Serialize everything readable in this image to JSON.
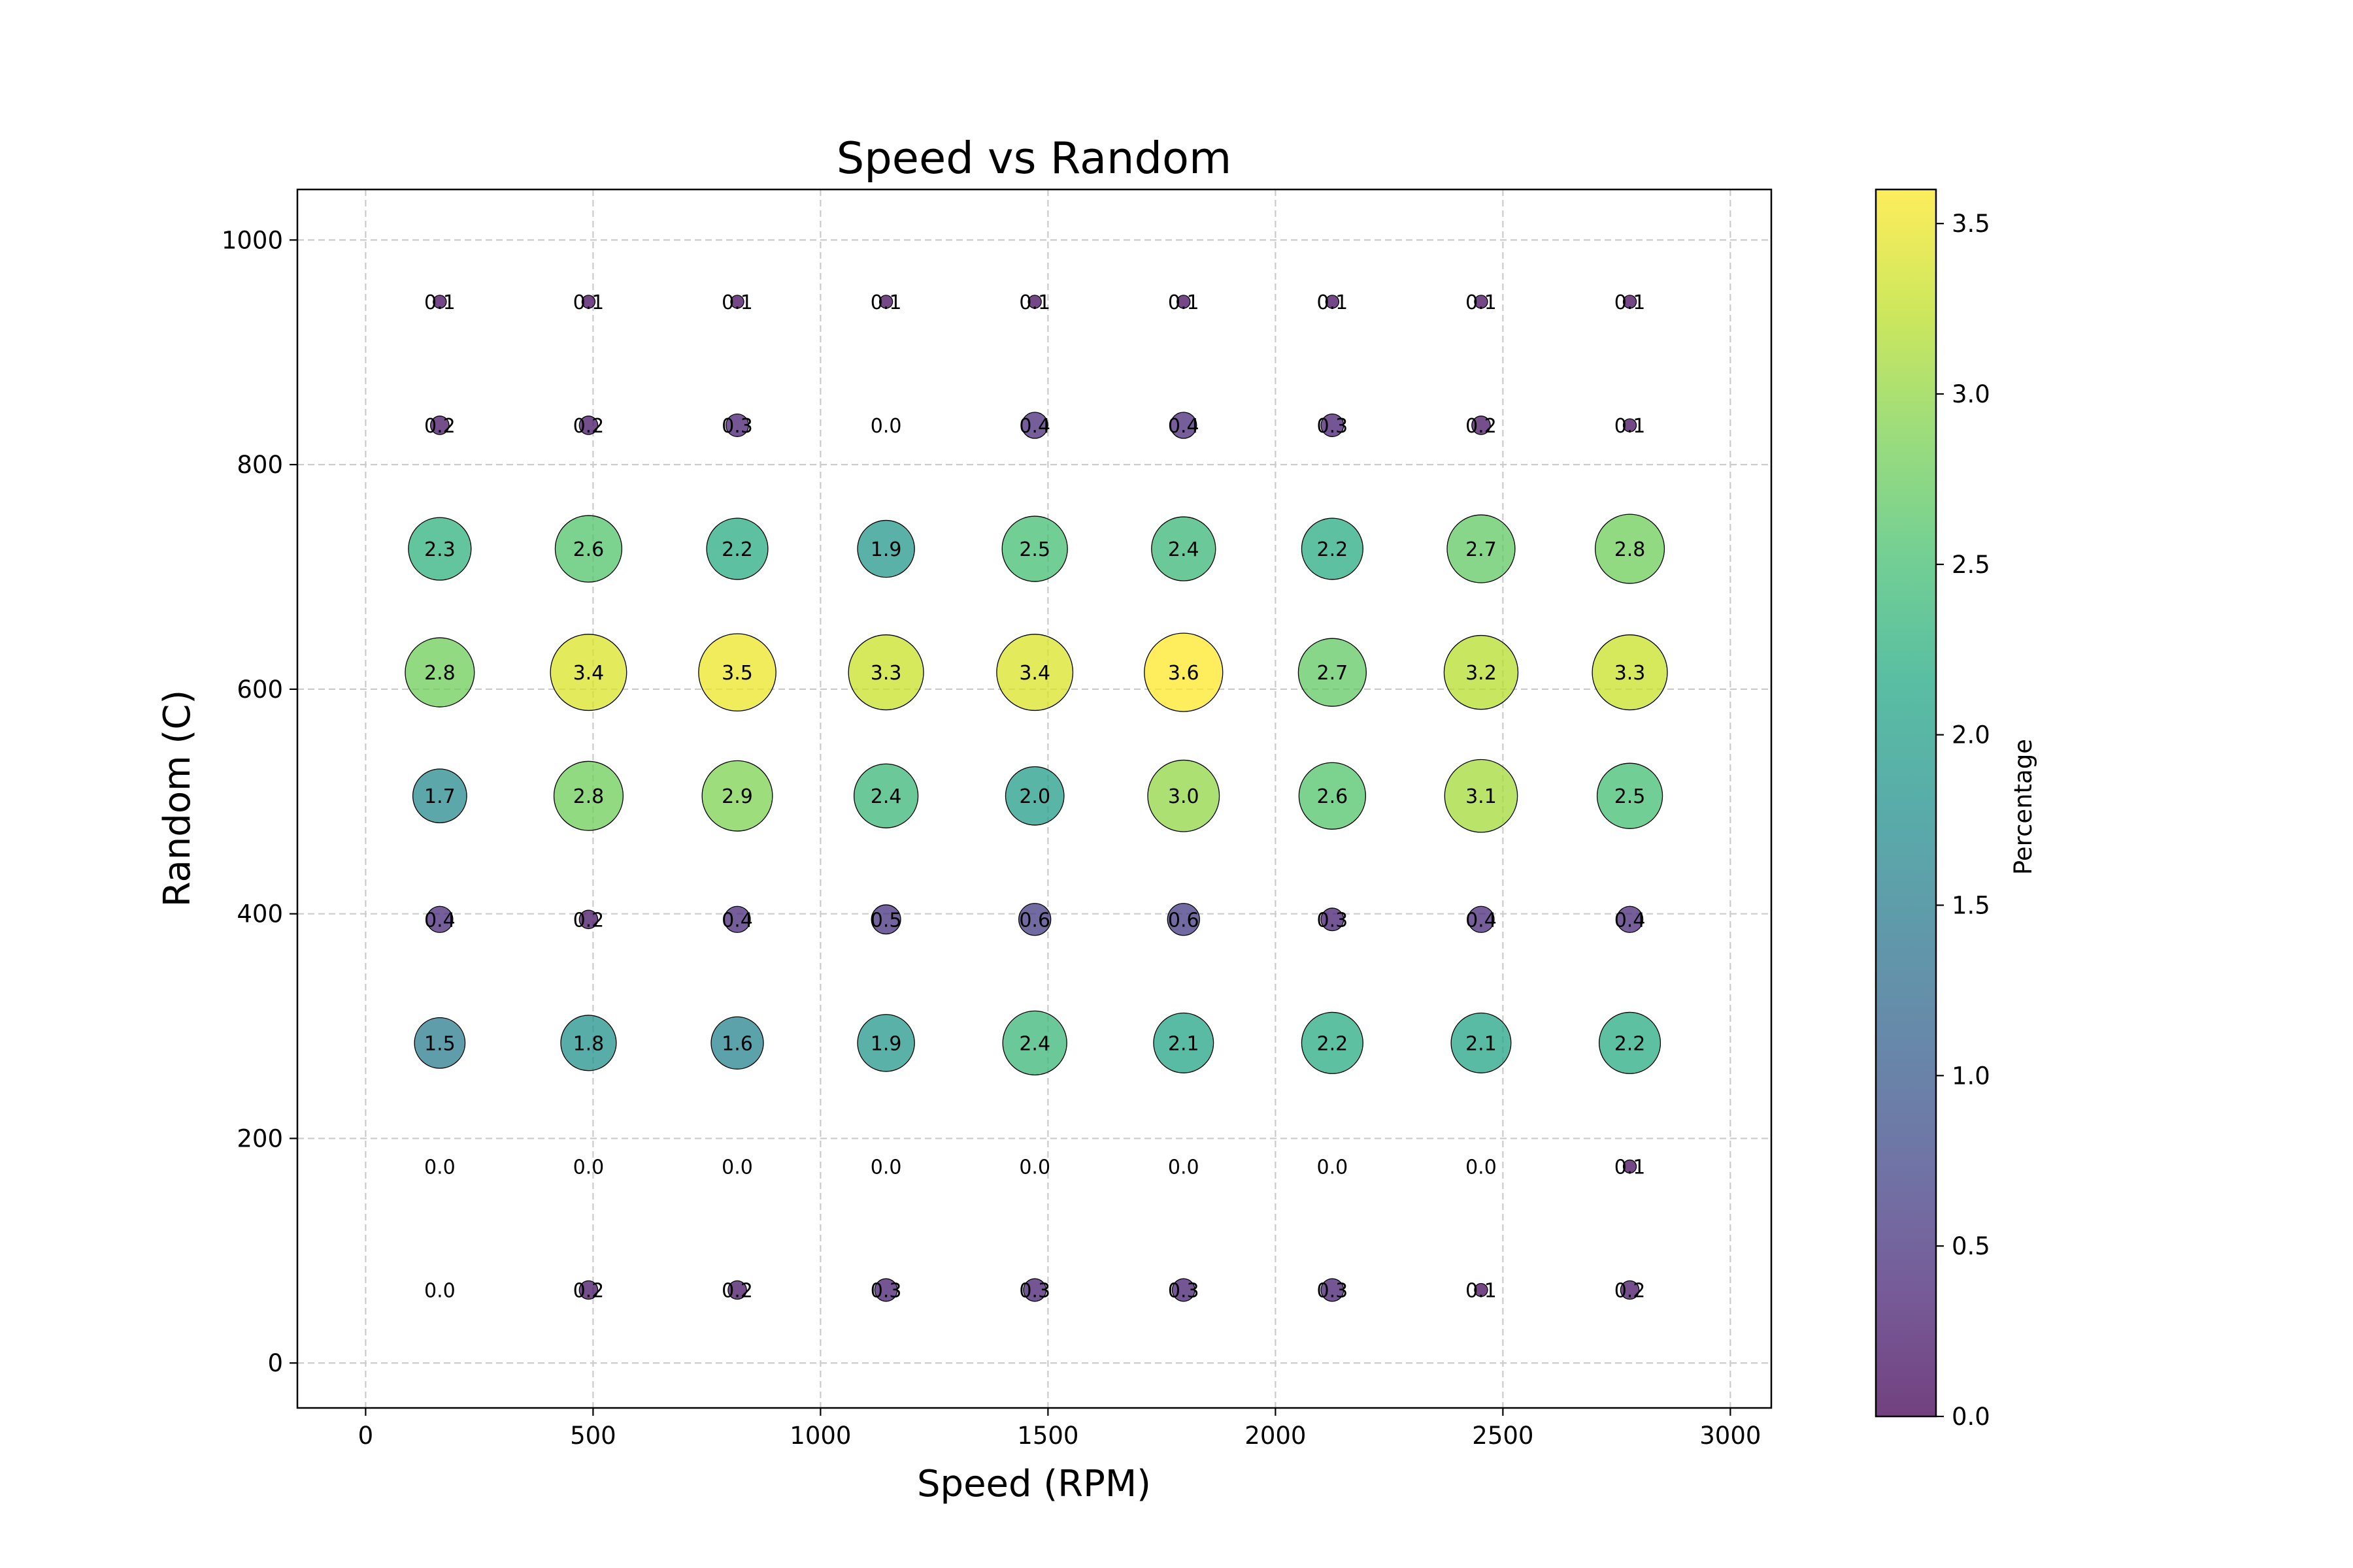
{
  "chart_data": {
    "type": "scatter",
    "title": "Speed vs Random",
    "xlabel": "Speed (RPM)",
    "ylabel": "Random (C)",
    "xlim": [
      -150,
      3090
    ],
    "ylim": [
      -40,
      1045
    ],
    "x_ticks": [
      0,
      500,
      1000,
      1500,
      2000,
      2500,
      3000
    ],
    "y_ticks": [
      0,
      200,
      400,
      600,
      800,
      1000
    ],
    "grid": true,
    "colorbar": {
      "label": "Percentage",
      "min": 0.0,
      "max": 3.6,
      "ticks": [
        "0.0",
        "0.5",
        "1.0",
        "1.5",
        "2.0",
        "2.5",
        "3.0",
        "3.5"
      ],
      "colormap": "viridis"
    },
    "x": [
      163,
      490,
      817,
      1144,
      1471,
      1798,
      2125,
      2452,
      2779
    ],
    "y": [
      945,
      835,
      725,
      615,
      505,
      395,
      285,
      175,
      65
    ],
    "values": [
      [
        0.1,
        0.1,
        0.1,
        0.1,
        0.1,
        0.1,
        0.1,
        0.1,
        0.1
      ],
      [
        0.2,
        0.2,
        0.3,
        0.0,
        0.4,
        0.4,
        0.3,
        0.2,
        0.1
      ],
      [
        2.3,
        2.6,
        2.2,
        1.9,
        2.5,
        2.4,
        2.2,
        2.7,
        2.8
      ],
      [
        2.8,
        3.4,
        3.5,
        3.3,
        3.4,
        3.6,
        2.7,
        3.2,
        3.3
      ],
      [
        1.7,
        2.8,
        2.9,
        2.4,
        2.0,
        3.0,
        2.6,
        3.1,
        2.5
      ],
      [
        0.4,
        0.2,
        0.4,
        0.5,
        0.6,
        0.6,
        0.3,
        0.4,
        0.4
      ],
      [
        1.5,
        1.8,
        1.6,
        1.9,
        2.4,
        2.1,
        2.2,
        2.1,
        2.2
      ],
      [
        0.0,
        0.0,
        0.0,
        0.0,
        0.0,
        0.0,
        0.0,
        0.0,
        0.1
      ],
      [
        0.0,
        0.2,
        0.2,
        0.3,
        0.3,
        0.3,
        0.3,
        0.1,
        0.2
      ]
    ]
  }
}
